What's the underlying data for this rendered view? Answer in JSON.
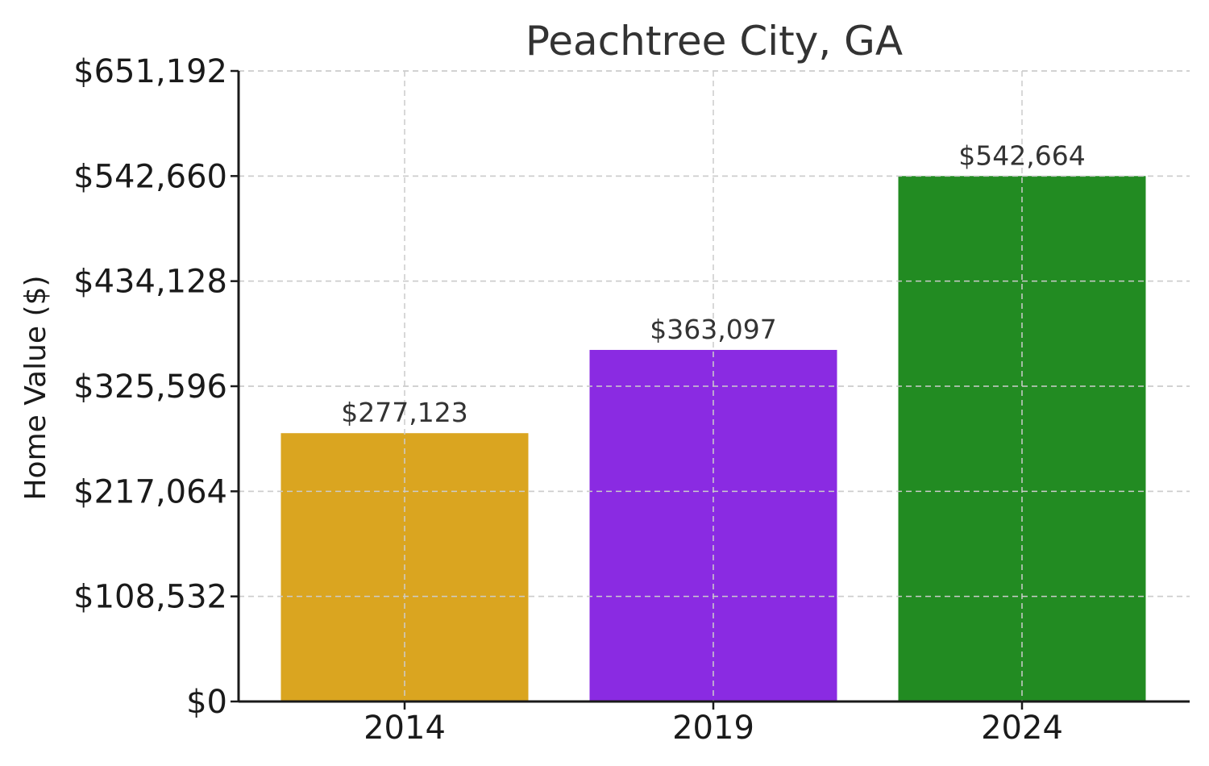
{
  "chart_data": {
    "type": "bar",
    "title": "Peachtree City, GA",
    "xlabel": "",
    "ylabel": "Home Value ($)",
    "categories": [
      "2014",
      "2019",
      "2024"
    ],
    "values": [
      277123,
      363097,
      542664
    ],
    "value_labels": [
      "$277,123",
      "$363,097",
      "$542,664"
    ],
    "colors": [
      "#DAA520",
      "#8A2BE2",
      "#228B22"
    ],
    "ylim": [
      0,
      651192
    ],
    "yticks": [
      0,
      108532,
      217064,
      325596,
      434128,
      542660,
      651192
    ],
    "ytick_labels": [
      "$0",
      "$108,532",
      "$217,064",
      "$325,596",
      "$434,128",
      "$542,660",
      "$651,192"
    ],
    "grid": true,
    "legend": "none"
  }
}
